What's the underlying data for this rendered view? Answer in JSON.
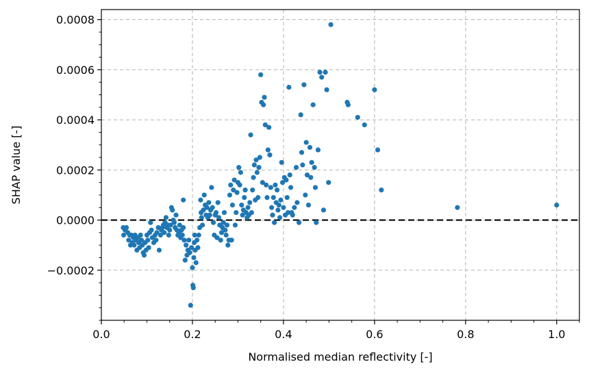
{
  "chart_data": {
    "type": "scatter",
    "title": "",
    "xlabel": "Normalised median reflectivity [-]",
    "ylabel": "SHAP value [-]",
    "xlim": [
      0.0,
      1.05
    ],
    "ylim": [
      -0.0004,
      0.00084
    ],
    "xticks": [
      0.0,
      0.2,
      0.4,
      0.6,
      0.8,
      1.0
    ],
    "xtick_labels": [
      "0.0",
      "0.2",
      "0.4",
      "0.6",
      "0.8",
      "1.0"
    ],
    "yticks": [
      -0.0002,
      0.0,
      0.0002,
      0.0004,
      0.0006,
      0.0008
    ],
    "ytick_labels": [
      "−0.0002",
      "0.0000",
      "0.0002",
      "0.0004",
      "0.0006",
      "0.0008"
    ],
    "grid": true,
    "marker_color": "#1f77b4",
    "reference_line": {
      "y": 0.0,
      "style": "dashed",
      "color": "#000000"
    },
    "points": [
      [
        0.048,
        -3e-05
      ],
      [
        0.049,
        -6e-05
      ],
      [
        0.052,
        -4e-05
      ],
      [
        0.055,
        -3e-05
      ],
      [
        0.058,
        -5e-05
      ],
      [
        0.06,
        -8e-05
      ],
      [
        0.062,
        -6e-05
      ],
      [
        0.064,
        -0.0001
      ],
      [
        0.066,
        -6e-05
      ],
      [
        0.068,
        -9e-05
      ],
      [
        0.07,
        -7e-05
      ],
      [
        0.072,
        -0.0001
      ],
      [
        0.074,
        -6e-05
      ],
      [
        0.076,
        -8e-05
      ],
      [
        0.078,
        -0.00012
      ],
      [
        0.08,
        -7e-05
      ],
      [
        0.082,
        -9e-05
      ],
      [
        0.084,
        -0.00011
      ],
      [
        0.086,
        -6e-05
      ],
      [
        0.088,
        -8e-05
      ],
      [
        0.09,
        -0.0001
      ],
      [
        0.092,
        -0.00013
      ],
      [
        0.094,
        -0.00014
      ],
      [
        0.096,
        -9e-05
      ],
      [
        0.098,
        -0.00012
      ],
      [
        0.1,
        -6e-05
      ],
      [
        0.102,
        -8e-05
      ],
      [
        0.104,
        -0.00011
      ],
      [
        0.106,
        -5e-05
      ],
      [
        0.108,
        -1e-05
      ],
      [
        0.11,
        -4e-05
      ],
      [
        0.112,
        -7e-05
      ],
      [
        0.115,
        -9e-05
      ],
      [
        0.118,
        -6e-05
      ],
      [
        0.12,
        -8e-05
      ],
      [
        0.122,
        -5e-05
      ],
      [
        0.125,
        -3e-05
      ],
      [
        0.127,
        -0.00012
      ],
      [
        0.13,
        -6e-05
      ],
      [
        0.132,
        -4e-05
      ],
      [
        0.134,
        -3e-05
      ],
      [
        0.136,
        -2e-05
      ],
      [
        0.138,
        -5e-05
      ],
      [
        0.14,
        -1e-05
      ],
      [
        0.142,
        1e-05
      ],
      [
        0.144,
        -3e-05
      ],
      [
        0.146,
        -2e-05
      ],
      [
        0.148,
        -6e-05
      ],
      [
        0.15,
        -4e-05
      ],
      [
        0.152,
        -2e-05
      ],
      [
        0.154,
        5e-05
      ],
      [
        0.156,
        4e-05
      ],
      [
        0.158,
        0.0
      ],
      [
        0.16,
        -1e-05
      ],
      [
        0.162,
        -3e-05
      ],
      [
        0.164,
        2e-05
      ],
      [
        0.166,
        -4e-05
      ],
      [
        0.168,
        -6e-05
      ],
      [
        0.17,
        -5e-05
      ],
      [
        0.172,
        -2e-05
      ],
      [
        0.174,
        -7e-05
      ],
      [
        0.176,
        -4e-05
      ],
      [
        0.178,
        -6e-05
      ],
      [
        0.18,
        -3e-05
      ],
      [
        0.18,
        8e-05
      ],
      [
        0.182,
        -8e-05
      ],
      [
        0.184,
        -0.00016
      ],
      [
        0.186,
        -0.0001
      ],
      [
        0.188,
        -0.00014
      ],
      [
        0.19,
        -0.00012
      ],
      [
        0.192,
        -8e-05
      ],
      [
        0.194,
        -0.00013
      ],
      [
        0.196,
        -0.00034
      ],
      [
        0.198,
        -0.00011
      ],
      [
        0.2,
        -0.00019
      ],
      [
        0.201,
        -0.00026
      ],
      [
        0.202,
        -0.00027
      ],
      [
        0.203,
        -0.00015
      ],
      [
        0.204,
        -9e-05
      ],
      [
        0.205,
        -6e-05
      ],
      [
        0.206,
        -0.00012
      ],
      [
        0.208,
        -0.00017
      ],
      [
        0.21,
        -8e-05
      ],
      [
        0.212,
        -0.00011
      ],
      [
        0.214,
        -6e-05
      ],
      [
        0.216,
        -3e-05
      ],
      [
        0.218,
        8e-05
      ],
      [
        0.219,
        3e-05
      ],
      [
        0.22,
        1e-05
      ],
      [
        0.222,
        -2e-05
      ],
      [
        0.224,
        4e-05
      ],
      [
        0.226,
        0.0001
      ],
      [
        0.228,
        6e-05
      ],
      [
        0.23,
        2e-05
      ],
      [
        0.232,
        5e-05
      ],
      [
        0.234,
        1e-05
      ],
      [
        0.236,
        7e-05
      ],
      [
        0.238,
        2e-05
      ],
      [
        0.24,
        4e-05
      ],
      [
        0.242,
        0.00013
      ],
      [
        0.244,
        5e-05
      ],
      [
        0.246,
        -1e-05
      ],
      [
        0.248,
        -6e-05
      ],
      [
        0.25,
        2e-05
      ],
      [
        0.252,
        3e-05
      ],
      [
        0.254,
        -7e-05
      ],
      [
        0.256,
        7e-05
      ],
      [
        0.258,
        1e-05
      ],
      [
        0.26,
        -2e-05
      ],
      [
        0.262,
        -8e-05
      ],
      [
        0.264,
        -5e-05
      ],
      [
        0.266,
        -3e-05
      ],
      [
        0.268,
        -1e-05
      ],
      [
        0.27,
        3e-05
      ],
      [
        0.272,
        -4e-05
      ],
      [
        0.274,
        -6e-05
      ],
      [
        0.276,
        -2e-05
      ],
      [
        0.278,
        -0.0001
      ],
      [
        0.28,
        -8e-05
      ],
      [
        0.282,
        0.0001
      ],
      [
        0.284,
        0.00014
      ],
      [
        0.286,
        -8e-05
      ],
      [
        0.288,
        6e-05
      ],
      [
        0.29,
        0.00012
      ],
      [
        0.292,
        0.00016
      ],
      [
        0.294,
        -2e-05
      ],
      [
        0.296,
        3e-05
      ],
      [
        0.298,
        0.00011
      ],
      [
        0.3,
        0.00015
      ],
      [
        0.302,
        0.00021
      ],
      [
        0.304,
        0.00014
      ],
      [
        0.306,
        0.00019
      ],
      [
        0.308,
        6e-05
      ],
      [
        0.31,
        2e-05
      ],
      [
        0.312,
        4e-05
      ],
      [
        0.314,
        9e-05
      ],
      [
        0.316,
        0.00012
      ],
      [
        0.318,
        3e-05
      ],
      [
        0.32,
        1e-05
      ],
      [
        0.322,
        5e-05
      ],
      [
        0.324,
        2e-05
      ],
      [
        0.326,
        7e-05
      ],
      [
        0.328,
        0.00034
      ],
      [
        0.33,
        3e-05
      ],
      [
        0.332,
        0.00012
      ],
      [
        0.334,
        0.00017
      ],
      [
        0.336,
        0.00022
      ],
      [
        0.338,
        8e-05
      ],
      [
        0.34,
        0.00024
      ],
      [
        0.342,
        0.00019
      ],
      [
        0.344,
        9e-05
      ],
      [
        0.346,
        0.00021
      ],
      [
        0.348,
        0.00025
      ],
      [
        0.35,
        0.00058
      ],
      [
        0.352,
        0.00047
      ],
      [
        0.354,
        0.00015
      ],
      [
        0.356,
        0.00046
      ],
      [
        0.358,
        0.00049
      ],
      [
        0.36,
        0.00038
      ],
      [
        0.362,
        0.00014
      ],
      [
        0.364,
        9e-05
      ],
      [
        0.366,
        0.00028
      ],
      [
        0.368,
        0.00037
      ],
      [
        0.37,
        0.00026
      ],
      [
        0.372,
        0.00013
      ],
      [
        0.374,
        5e-05
      ],
      [
        0.376,
        2e-05
      ],
      [
        0.378,
        9e-05
      ],
      [
        0.38,
        -1e-05
      ],
      [
        0.382,
        0.00014
      ],
      [
        0.384,
        7e-05
      ],
      [
        0.386,
        0.00012
      ],
      [
        0.388,
        4e-05
      ],
      [
        0.39,
        6e-05
      ],
      [
        0.392,
        1e-05
      ],
      [
        0.394,
        8e-05
      ],
      [
        0.396,
        0.00023
      ],
      [
        0.398,
        0.00015
      ],
      [
        0.4,
        5e-05
      ],
      [
        0.402,
        0.00017
      ],
      [
        0.404,
        2e-05
      ],
      [
        0.406,
        0.00016
      ],
      [
        0.408,
        9e-05
      ],
      [
        0.41,
        3e-05
      ],
      [
        0.412,
        0.00053
      ],
      [
        0.414,
        0.00018
      ],
      [
        0.416,
        0.00013
      ],
      [
        0.418,
        3e-05
      ],
      [
        0.42,
        2e-05
      ],
      [
        0.424,
        5e-05
      ],
      [
        0.428,
        0.00021
      ],
      [
        0.43,
        7e-05
      ],
      [
        0.434,
        -1e-05
      ],
      [
        0.438,
        0.00042
      ],
      [
        0.44,
        0.00027
      ],
      [
        0.442,
        0.00022
      ],
      [
        0.445,
        0.00054
      ],
      [
        0.448,
        0.0001
      ],
      [
        0.45,
        0.00031
      ],
      [
        0.452,
        0.00018
      ],
      [
        0.455,
        6e-05
      ],
      [
        0.458,
        0.00029
      ],
      [
        0.46,
        0.00017
      ],
      [
        0.462,
        0.00023
      ],
      [
        0.465,
        0.00046
      ],
      [
        0.468,
        0.00021
      ],
      [
        0.47,
        0.00013
      ],
      [
        0.472,
        -1e-05
      ],
      [
        0.476,
        0.00028
      ],
      [
        0.48,
        0.00059
      ],
      [
        0.484,
        0.00057
      ],
      [
        0.488,
        4e-05
      ],
      [
        0.492,
        0.00059
      ],
      [
        0.495,
        0.00052
      ],
      [
        0.499,
        0.00015
      ],
      [
        0.504,
        0.00078
      ],
      [
        0.54,
        0.00047
      ],
      [
        0.542,
        0.00046
      ],
      [
        0.563,
        0.00041
      ],
      [
        0.578,
        0.00038
      ],
      [
        0.6,
        0.00052
      ],
      [
        0.607,
        0.00028
      ],
      [
        0.615,
        0.00012
      ],
      [
        0.782,
        5e-05
      ],
      [
        1.0,
        6e-05
      ]
    ]
  }
}
